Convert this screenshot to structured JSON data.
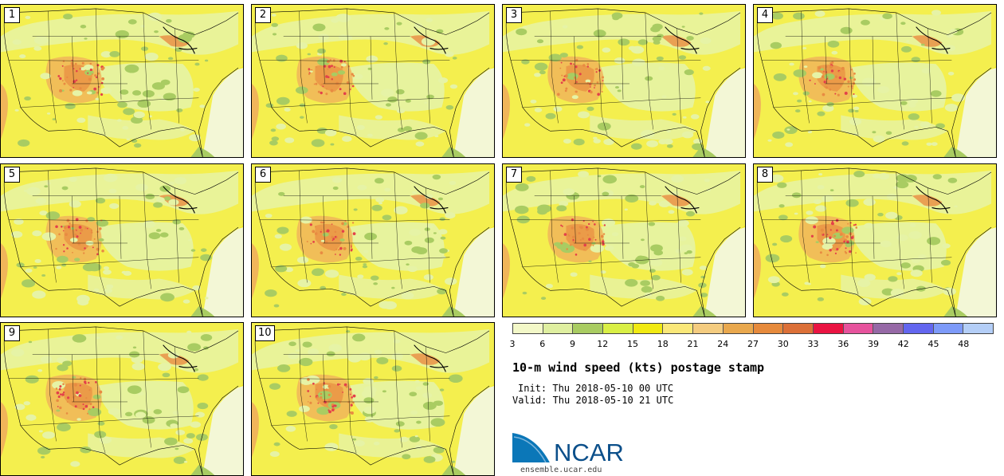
{
  "panels": [
    "1",
    "2",
    "3",
    "4",
    "5",
    "6",
    "7",
    "8",
    "9",
    "10"
  ],
  "colorbar": {
    "ticks": [
      "3",
      "6",
      "9",
      "12",
      "15",
      "18",
      "21",
      "24",
      "27",
      "30",
      "33",
      "36",
      "39",
      "42",
      "45",
      "48"
    ],
    "colors": [
      "#f3f8c8",
      "#dfefa0",
      "#a9cc62",
      "#d9ef45",
      "#f1ea12",
      "#fae879",
      "#f4cc80",
      "#e9a84e",
      "#e68a3c",
      "#dc7038",
      "#ea1442",
      "#e6539d",
      "#9669a6",
      "#6366ef",
      "#7d9af9",
      "#b4cef7"
    ]
  },
  "title": "10-m wind speed (kts) postage stamp",
  "init": "Init: Thu 2018-05-10 00 UTC",
  "valid": "Valid: Thu 2018-05-10 21 UTC",
  "logo_text": "NCAR",
  "site": "ensemble.ucar.edu",
  "map_colors": {
    "base": "#f4ef4e",
    "light": "#e6f3a6",
    "green": "#a9cc62",
    "orange": "#f0b55a",
    "darkorange": "#e88b42",
    "red": "#e3404a",
    "ocean": "#f5ec27",
    "atlantic": "#f3f7d6",
    "blue": "#0b77b8"
  }
}
